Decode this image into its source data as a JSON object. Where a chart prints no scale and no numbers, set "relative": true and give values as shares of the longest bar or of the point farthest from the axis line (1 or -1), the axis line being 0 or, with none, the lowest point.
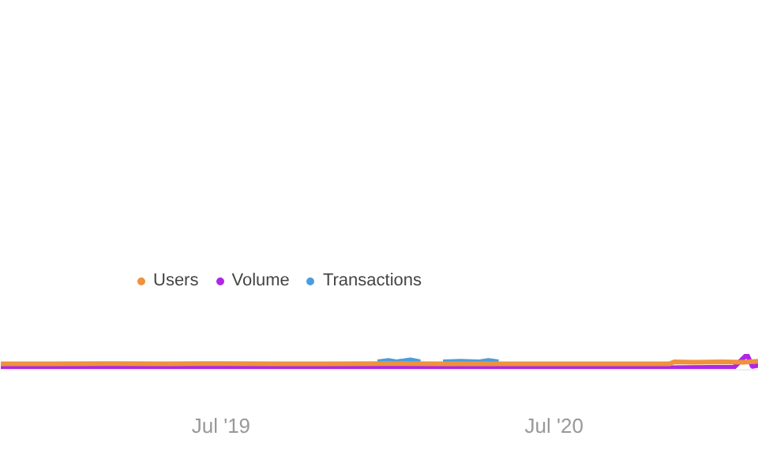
{
  "chart_data": {
    "type": "line",
    "relative": true,
    "xlim": [
      "2018-11-01",
      "2021-02-11"
    ],
    "xticks": [
      {
        "value": "2019-07-01",
        "label": "Jul '19"
      },
      {
        "value": "2020-07-01",
        "label": "Jul '20"
      }
    ],
    "grid": false,
    "legend": "top left",
    "marker": "none",
    "line_style": "solid",
    "series": [
      {
        "name": "Transactions",
        "color": "#4a9de0",
        "x": [
          "2019-12-20",
          "2020-01-01",
          "2020-01-10",
          "2020-01-25",
          "2020-02-05",
          "2020-02-20",
          "2020-03-01",
          "2020-03-20",
          "2020-04-10",
          "2020-04-20",
          "2020-05-01"
        ],
        "values": [
          0.45,
          0.55,
          0.45,
          0.6,
          0.45,
          null,
          0.45,
          0.5,
          0.45,
          0.55,
          0.45
        ]
      },
      {
        "name": "Volume",
        "color": "#b026e8",
        "x": [
          "2018-11-01",
          "2019-03-01",
          "2019-07-01",
          "2019-11-01",
          "2020-03-01",
          "2020-07-01",
          "2020-11-01",
          "2021-01-15",
          "2021-01-29",
          "2021-02-04",
          "2021-02-11"
        ],
        "values": [
          0,
          0,
          0,
          0,
          0,
          0,
          0,
          0.05,
          1,
          0.1,
          0.2
        ]
      },
      {
        "name": "Users",
        "color": "#f0913c",
        "x": [
          "2018-11-01",
          "2019-01-01",
          "2019-03-01",
          "2019-05-01",
          "2019-07-01",
          "2019-09-01",
          "2019-11-01",
          "2020-01-01",
          "2020-03-01",
          "2020-05-01",
          "2020-07-01",
          "2020-09-01",
          "2020-11-05",
          "2020-11-10",
          "2020-12-01",
          "2021-01-01",
          "2021-01-25",
          "2021-02-11"
        ],
        "values": [
          0.3,
          0.3,
          0.32,
          0.3,
          0.32,
          0.3,
          0.3,
          0.32,
          0.3,
          0.3,
          0.3,
          0.3,
          0.3,
          0.45,
          0.42,
          0.45,
          0.42,
          0.5
        ]
      }
    ]
  }
}
